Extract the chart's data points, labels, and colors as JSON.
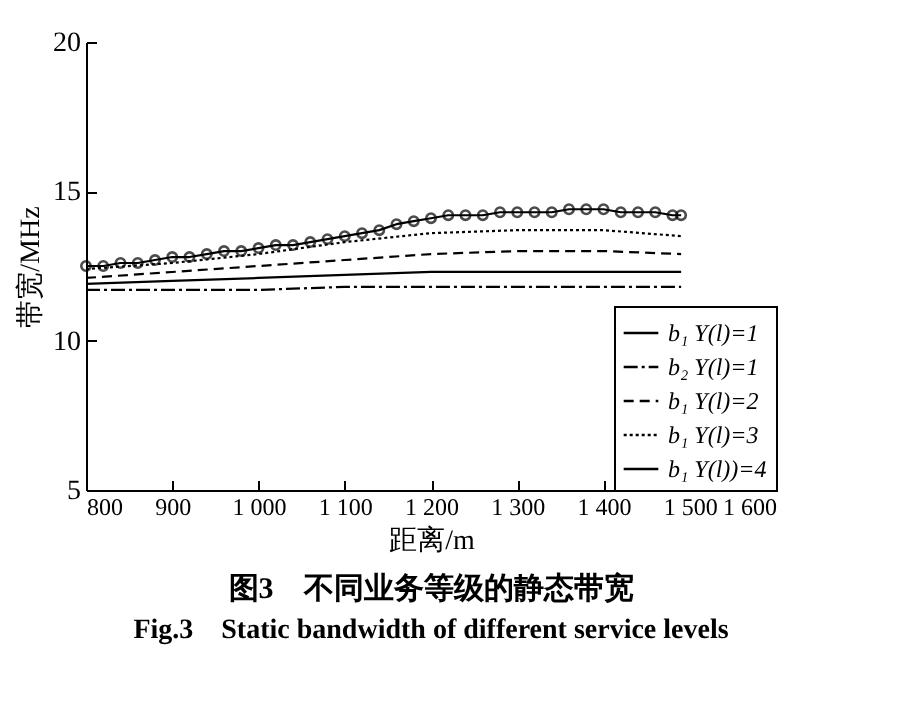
{
  "chart_data": {
    "type": "line",
    "title": "图3　不同业务等级的静态带宽",
    "subtitle": "Fig.3　Static bandwidth of different service levels",
    "xlabel": "距离/m",
    "ylabel": "带宽/MHz",
    "xlim": [
      800,
      1600
    ],
    "xticks": [
      800,
      900,
      {
        "value": 1000,
        "label": "1 000"
      },
      {
        "value": 1100,
        "label": "1 100"
      },
      {
        "value": 1200,
        "label": "1 200"
      },
      {
        "value": 1300,
        "label": "1 300"
      },
      {
        "value": 1400,
        "label": "1 400"
      },
      {
        "value": 1500,
        "label": "1 500"
      },
      {
        "value": 1600,
        "label": "1 600"
      }
    ],
    "ylim": [
      5,
      20
    ],
    "yticks": [
      5,
      10,
      15,
      20
    ],
    "legend": "bottom right",
    "series": [
      {
        "name": "b₁ Y(l)=1",
        "color": "#000000",
        "line_style": "solid",
        "x": [
          800,
          900,
          1000,
          1100,
          1200,
          1300,
          1400,
          1490
        ],
        "values": [
          11.9,
          12.0,
          12.1,
          12.2,
          12.3,
          12.3,
          12.3,
          12.3
        ]
      },
      {
        "name": "b₂ Y(l)=1",
        "color": "#000000",
        "line_style": "dashdot",
        "x": [
          800,
          900,
          1000,
          1100,
          1200,
          1300,
          1400,
          1490
        ],
        "values": [
          11.7,
          11.7,
          11.7,
          11.8,
          11.8,
          11.8,
          11.8,
          11.8
        ]
      },
      {
        "name": "b₁ Y(l)=2",
        "color": "#000000",
        "line_style": "dashed",
        "x": [
          800,
          900,
          1000,
          1100,
          1200,
          1300,
          1400,
          1490
        ],
        "values": [
          12.1,
          12.3,
          12.5,
          12.7,
          12.9,
          13.0,
          13.0,
          12.9
        ]
      },
      {
        "name": "b₁ Y(l)=3",
        "color": "#000000",
        "line_style": "dotted",
        "x": [
          800,
          900,
          1000,
          1100,
          1200,
          1300,
          1400,
          1490
        ],
        "values": [
          12.4,
          12.6,
          12.9,
          13.3,
          13.6,
          13.7,
          13.7,
          13.5
        ]
      },
      {
        "name": "b₁ Y(l))=4",
        "color": "#000000",
        "line_style": "solid",
        "marker": "circle",
        "x": [
          800,
          820,
          840,
          860,
          880,
          900,
          920,
          940,
          960,
          980,
          1000,
          1020,
          1040,
          1060,
          1080,
          1100,
          1120,
          1140,
          1160,
          1180,
          1200,
          1220,
          1240,
          1260,
          1280,
          1300,
          1320,
          1340,
          1360,
          1380,
          1400,
          1420,
          1440,
          1460,
          1480,
          1490
        ],
        "values": [
          12.5,
          12.5,
          12.6,
          12.6,
          12.7,
          12.8,
          12.8,
          12.9,
          13.0,
          13.0,
          13.1,
          13.2,
          13.2,
          13.3,
          13.4,
          13.5,
          13.6,
          13.7,
          13.9,
          14.0,
          14.1,
          14.2,
          14.2,
          14.2,
          14.3,
          14.3,
          14.3,
          14.3,
          14.4,
          14.4,
          14.4,
          14.3,
          14.3,
          14.3,
          14.2,
          14.2
        ]
      }
    ]
  }
}
